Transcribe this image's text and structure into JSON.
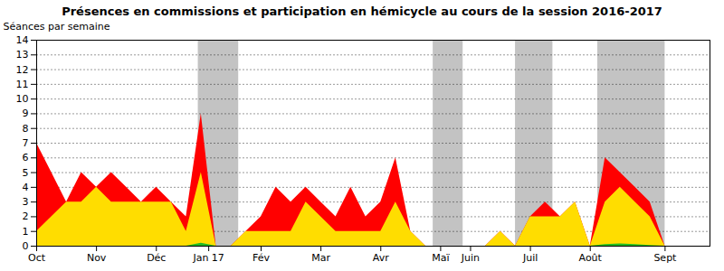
{
  "chart_data": {
    "type": "area",
    "title": "Présences en commissions et participation en hémicycle au cours de la session 2016-2017",
    "ylabel": "Séances par semaine",
    "x": [
      0,
      1,
      2,
      3,
      4,
      5,
      6,
      7,
      8,
      9,
      10,
      11,
      12,
      13,
      14,
      15,
      16,
      17,
      18,
      19,
      20,
      21,
      22,
      23,
      24,
      25,
      26,
      27,
      28,
      29,
      30,
      31,
      32,
      33,
      34,
      35,
      36,
      37,
      38,
      39,
      40,
      41,
      42,
      43,
      44,
      45
    ],
    "xlim": [
      0,
      45
    ],
    "xticks": [
      {
        "value": 0,
        "label": "Oct"
      },
      {
        "value": 4,
        "label": "Nov"
      },
      {
        "value": 8,
        "label": "Déc"
      },
      {
        "value": 11.5,
        "label": "Jan 17"
      },
      {
        "value": 15,
        "label": "Fév"
      },
      {
        "value": 19,
        "label": "Mar"
      },
      {
        "value": 23,
        "label": "Avr"
      },
      {
        "value": 27,
        "label": "Maï"
      },
      {
        "value": 29,
        "label": "Juin"
      },
      {
        "value": 33,
        "label": "Juil"
      },
      {
        "value": 37,
        "label": "Août"
      },
      {
        "value": 42,
        "label": "Sept"
      }
    ],
    "ylim": [
      0,
      14
    ],
    "yticks": [
      0,
      1,
      2,
      3,
      4,
      5,
      6,
      7,
      8,
      9,
      10,
      11,
      12,
      13,
      14
    ],
    "grid": true,
    "stacked": false,
    "shaded_bands": [
      [
        10.8,
        13.5
      ],
      [
        26.5,
        28.5
      ],
      [
        32.0,
        34.5
      ],
      [
        37.5,
        42.0
      ]
    ],
    "series": [
      {
        "color": "#ff0000",
        "values": [
          7,
          5,
          3,
          5,
          4,
          5,
          4,
          3,
          4,
          3,
          2,
          9,
          0,
          0,
          1,
          2,
          4,
          3,
          4,
          3,
          2,
          4,
          2,
          3,
          6,
          1,
          0,
          0,
          0,
          0,
          0,
          1,
          0,
          2,
          3,
          2,
          3,
          0,
          6,
          5,
          4,
          3,
          0,
          0,
          0,
          0
        ]
      },
      {
        "color": "#ffdd00",
        "values": [
          1,
          2,
          3,
          3,
          4,
          3,
          3,
          3,
          3,
          3,
          1,
          5,
          0,
          0,
          1,
          1,
          1,
          1,
          3,
          2,
          1,
          1,
          1,
          1,
          3,
          1,
          0,
          0,
          0,
          0,
          0,
          1,
          0,
          2,
          2,
          2,
          3,
          0,
          3,
          4,
          3,
          2,
          0,
          0,
          0,
          0
        ]
      },
      {
        "color": "#22bb22",
        "values": [
          0,
          0,
          0,
          0,
          0,
          0,
          0,
          0,
          0,
          0,
          0,
          0.2,
          0,
          0,
          0,
          0,
          0,
          0,
          0,
          0,
          0,
          0,
          0,
          0,
          0,
          0,
          0,
          0,
          0,
          0,
          0,
          0,
          0,
          0,
          0,
          0,
          0,
          0,
          0.1,
          0.15,
          0.1,
          0.05,
          0,
          0,
          0,
          0
        ]
      }
    ]
  }
}
